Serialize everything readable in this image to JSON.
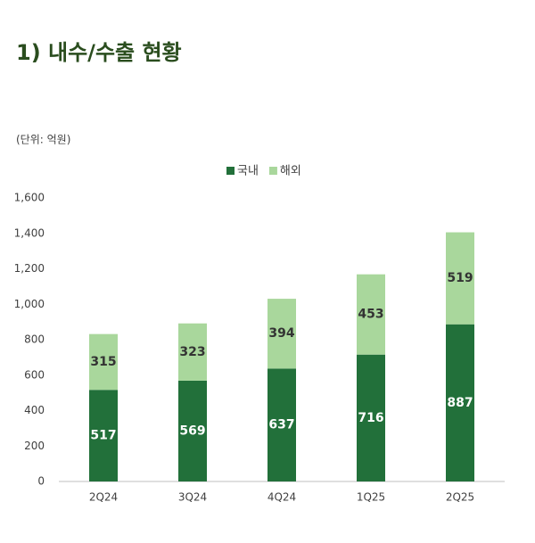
{
  "chart_data": {
    "type": "stacked_bar",
    "title": "1) 내수/수출 현황",
    "unit_label": "(단위: 억원)",
    "categories": [
      "2Q24",
      "3Q24",
      "4Q24",
      "1Q25",
      "2Q25"
    ],
    "series": [
      {
        "name": "국내",
        "color": "#22703a",
        "values": [
          517,
          569,
          637,
          716,
          887
        ]
      },
      {
        "name": "해외",
        "color": "#a9d79c",
        "values": [
          315,
          323,
          394,
          453,
          519
        ]
      }
    ],
    "ylim": [
      0,
      1600
    ],
    "yticks": [
      0,
      200,
      400,
      600,
      800,
      {
        "value": 1000,
        "label": "1,000"
      },
      {
        "value": 1200,
        "label": "1,200"
      },
      {
        "value": 1400,
        "label": "1,400"
      },
      {
        "value": 1600,
        "label": "1,600"
      }
    ],
    "grid": false,
    "legend": "top"
  }
}
